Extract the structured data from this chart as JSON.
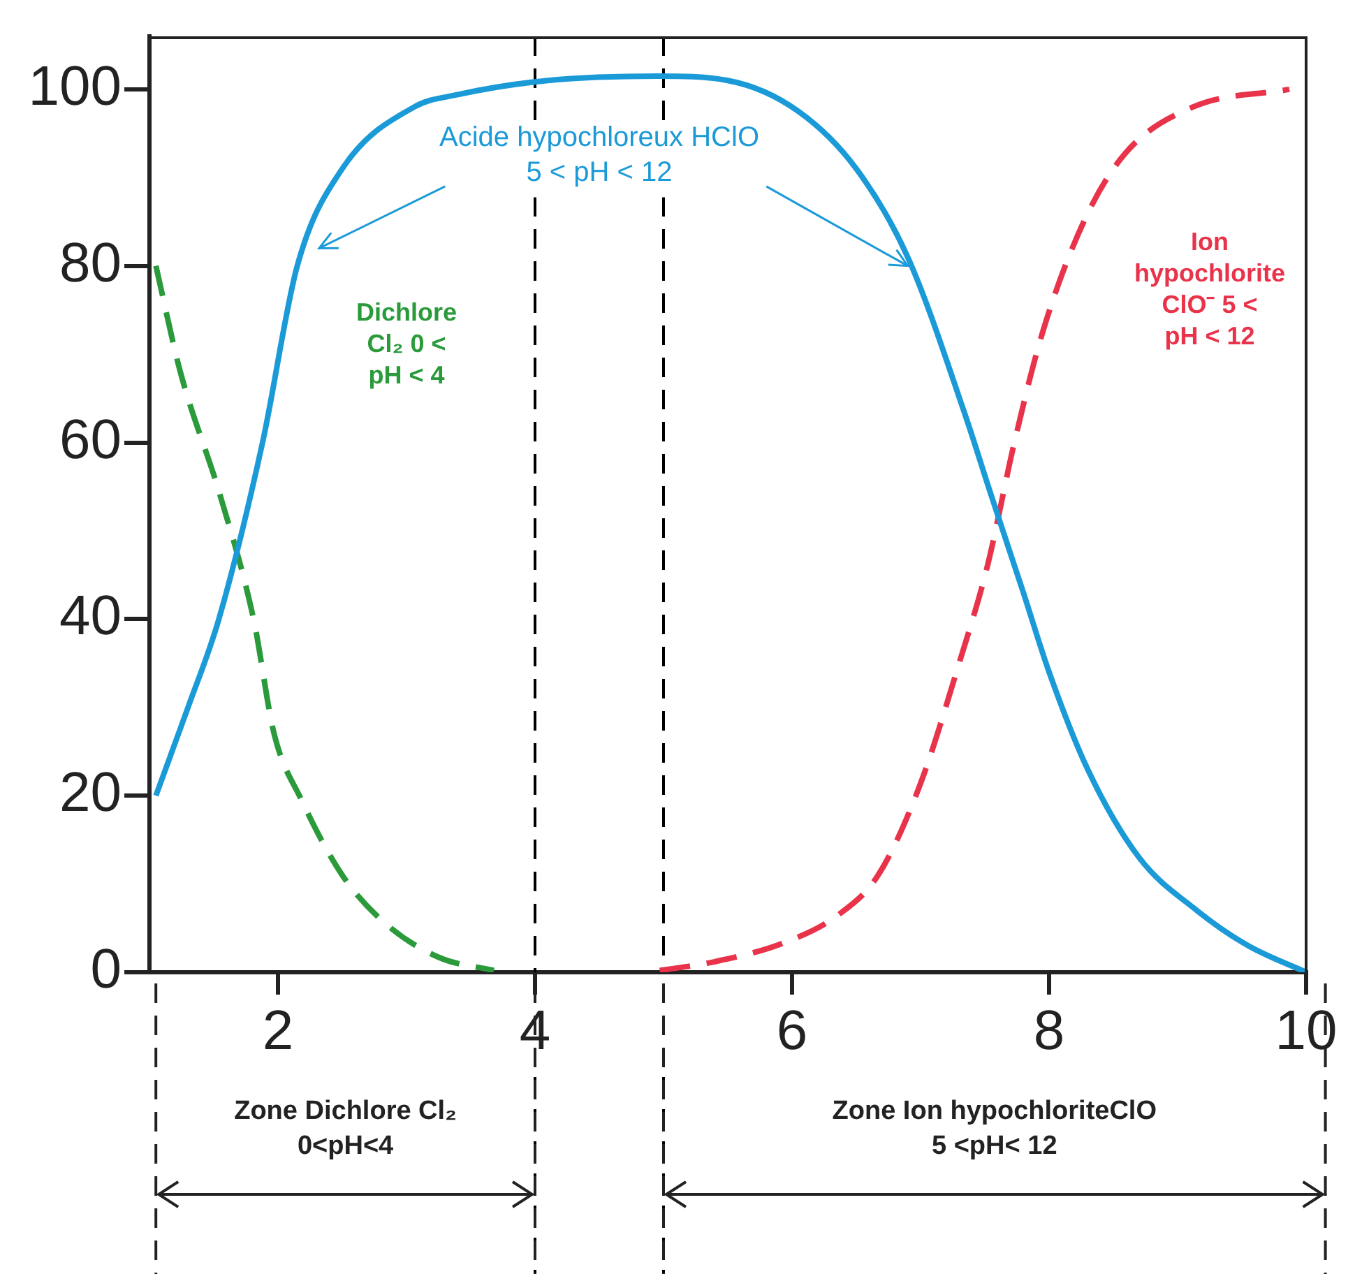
{
  "chart_data": {
    "type": "line",
    "xlim": [
      1,
      10
    ],
    "xticks": [
      2,
      4,
      6,
      8,
      10
    ],
    "ylim": [
      0,
      106
    ],
    "yticks": [
      0,
      20,
      40,
      60,
      80,
      100
    ],
    "grid": false,
    "legend": false,
    "marker": "none",
    "series": [
      {
        "name": "Acide hypochloreux HClO\n5 < pH < 12",
        "color": "#1b9ad8",
        "line_style": "solid",
        "x": [
          1.05,
          1.3,
          1.54,
          1.88,
          2.15,
          2.5,
          3.06,
          3.4,
          4.1,
          4.95,
          5.5,
          6.05,
          6.5,
          6.9,
          7.35,
          7.55,
          7.8,
          8.0,
          8.3,
          8.7,
          9.15,
          9.55,
          10
        ],
        "values": [
          20,
          30,
          40,
          60,
          80,
          91,
          98,
          99.4,
          101,
          101.5,
          101,
          97.5,
          91,
          81,
          63,
          54,
          43,
          34,
          23,
          13,
          7,
          3,
          0
        ]
      },
      {
        "name": "Dichlore Cl₂ 0 < pH < 4",
        "color": "#2a9a3a",
        "line_style": "dashed",
        "x": [
          1.05,
          1.24,
          1.55,
          1.81,
          1.97,
          2.18,
          2.5,
          2.83,
          3.25,
          3.68
        ],
        "values": [
          80,
          68,
          54,
          40,
          27,
          19.6,
          11,
          5.6,
          1.7,
          0.2
        ]
      },
      {
        "name": "Ion hypochlorite ClO⁻ 5 < pH < 12",
        "color": "#e8334a",
        "line_style": "dashed",
        "x": [
          4.97,
          5.4,
          5.93,
          6.35,
          6.67,
          6.99,
          7.3,
          7.52,
          7.73,
          7.95,
          8.27,
          8.59,
          9.12,
          9.87
        ],
        "values": [
          0.2,
          1.2,
          3.3,
          6.4,
          11,
          21,
          35,
          46,
          60,
          72.5,
          85,
          92.7,
          98,
          100
        ]
      }
    ],
    "ref_lines": [
      {
        "axis": "x",
        "value": 4,
        "color": "#000000",
        "line_style": "dashed"
      },
      {
        "axis": "x",
        "value": 5,
        "color": "#000000",
        "line_style": "dashed"
      }
    ],
    "annotations": [
      "Zone Dichlore Cl₂\n0<pH<4",
      "Zone Ion hypochloriteClO\n5 <pH< 12"
    ]
  }
}
